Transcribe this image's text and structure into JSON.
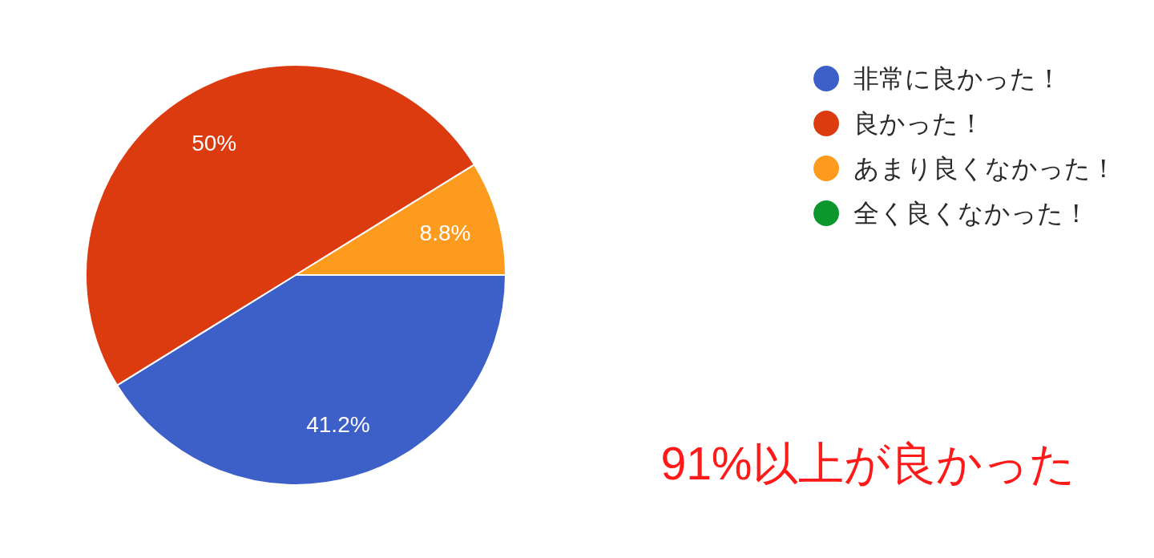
{
  "chart_data": {
    "type": "pie",
    "categories": [
      "非常に良かった！",
      "良かった！",
      "あまり良くなかった！",
      "全く良くなかった！"
    ],
    "values": [
      41.2,
      50,
      8.8,
      0
    ],
    "colors": [
      "#3c5fc8",
      "#dc3b10",
      "#fd9b1f",
      "#0c962e"
    ],
    "value_labels": [
      "41.2%",
      "50%",
      "8.8%",
      null
    ],
    "legend": "top right",
    "annotations": [
      "91%以上が良かった"
    ]
  }
}
